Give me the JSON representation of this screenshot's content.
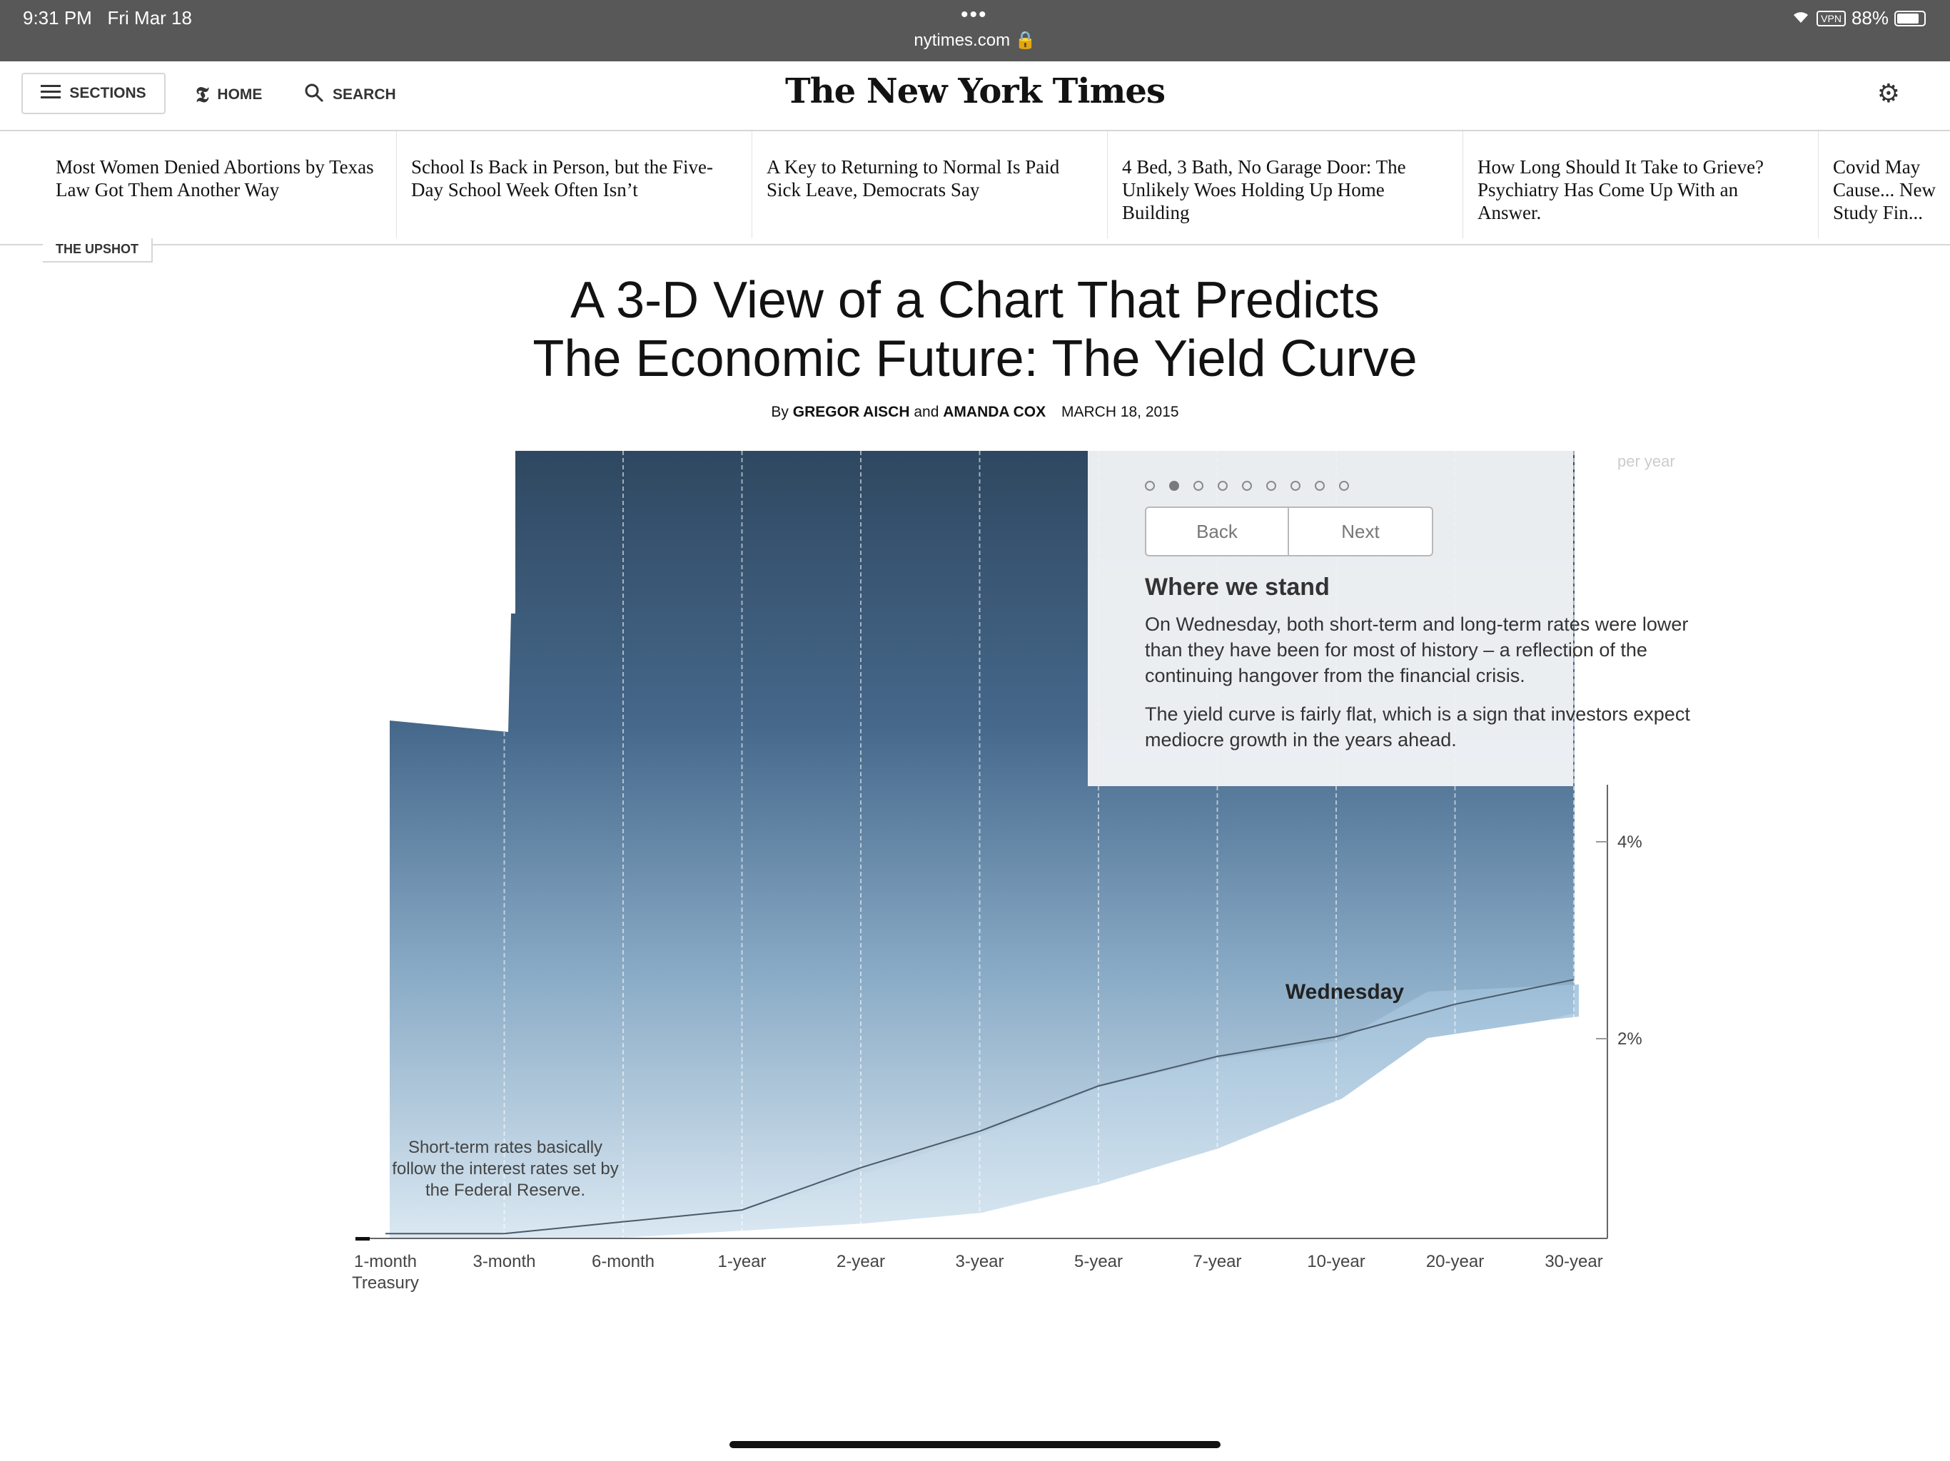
{
  "status_bar": {
    "time": "9:31 PM",
    "date": "Fri Mar 18",
    "url": "nytimes.com",
    "vpn": "VPN",
    "battery": "88%"
  },
  "masthead": {
    "sections_label": "SECTIONS",
    "home_label": "HOME",
    "search_label": "SEARCH",
    "logo": "The New York Times"
  },
  "strip": [
    "Most Women Denied Abortions by Texas Law Got Them Another Way",
    "School Is Back in Person, but the Five-Day School Week Often Isn’t",
    "A Key to Returning to Normal Is Paid Sick Leave, Democrats Say",
    "4 Bed, 3 Bath, No Garage Door: The Unlikely Woes Holding Up Home Building",
    "How Long Should It Take to Grieve? Psychiatry Has Come Up With an Answer.",
    "Covid May Cause... New Study Fin..."
  ],
  "article": {
    "kicker": "THE UPSHOT",
    "headline_line1": "A 3-D View of a Chart That Predicts",
    "headline_line2": "The Economic Future: The Yield Curve",
    "by": "By",
    "author1": "GREGOR AISCH",
    "and": "and",
    "author2": "AMANDA COX",
    "date": "MARCH 18, 2015"
  },
  "panel": {
    "steps": 9,
    "active_step": 2,
    "back_label": "Back",
    "next_label": "Next",
    "heading": "Where we stand",
    "para1": "On Wednesday, both short-term and long-term rates were lower than they have been for most of history – a reflection of the continuing hangover from the financial crisis.",
    "para2": "The yield curve is fairly flat, which is a sign that investors expect mediocre growth in the years ahead."
  },
  "chart_data": {
    "type": "area",
    "categories": [
      "1-month Treasury",
      "3-month",
      "6-month",
      "1-year",
      "2-year",
      "3-year",
      "5-year",
      "7-year",
      "10-year",
      "20-year",
      "30-year"
    ],
    "series": [
      {
        "name": "Wednesday",
        "values": [
          0.02,
          0.02,
          0.14,
          0.26,
          0.69,
          1.06,
          1.52,
          1.82,
          2.02,
          2.35,
          2.6
        ]
      }
    ],
    "y_tick_labels": [
      "2%",
      "4%"
    ],
    "y_ticks": [
      2,
      4
    ],
    "y_unit_label": "per year",
    "ylim": [
      0,
      8
    ],
    "annotations": [
      "Short-term rates basically follow the interest rates set by the Federal Reserve."
    ],
    "series_label": "Wednesday"
  }
}
